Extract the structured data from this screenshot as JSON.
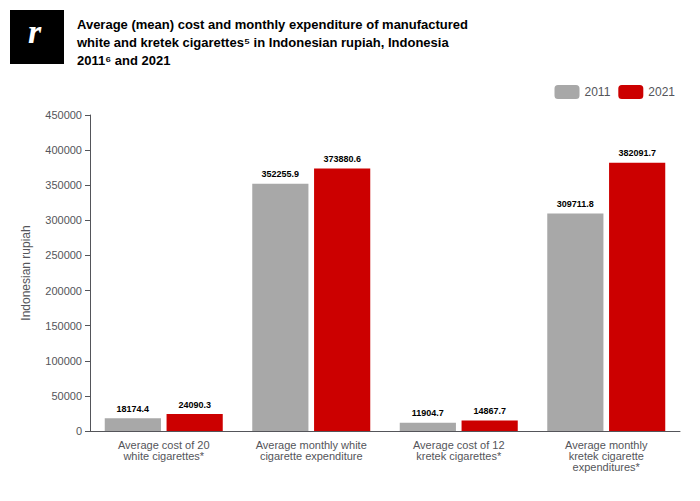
{
  "chart_data": {
    "type": "bar",
    "title": "Average (mean) cost and monthly expenditure of manufactured\nwhite and kretek cigarettes⁵ in Indonesian rupiah, Indonesia\n2011⁶ and 2021",
    "annotations": [
      "r"
    ],
    "ylabel": "Indonesian rupiah",
    "categories": [
      "Average cost of 20\nwhite cigarettes*",
      "Average monthly white\ncigarette expenditure",
      "Average cost of 12\nkretek cigarettes*",
      "Average monthly\nkretek cigarette\nexpenditures*"
    ],
    "series": [
      {
        "name": "2011",
        "color": "#a8a8a8",
        "values": [
          18174.4,
          352255.9,
          11904.7,
          309711.8
        ]
      },
      {
        "name": "2021",
        "color": "#cc0000",
        "values": [
          24090.3,
          373880.6,
          14867.7,
          382091.7
        ]
      }
    ],
    "ylim": [
      0,
      450000
    ],
    "yticks": [
      0,
      50000,
      100000,
      150000,
      200000,
      250000,
      300000,
      350000,
      400000,
      450000
    ],
    "data_labels": true,
    "legend": "upper right",
    "grid": false
  }
}
